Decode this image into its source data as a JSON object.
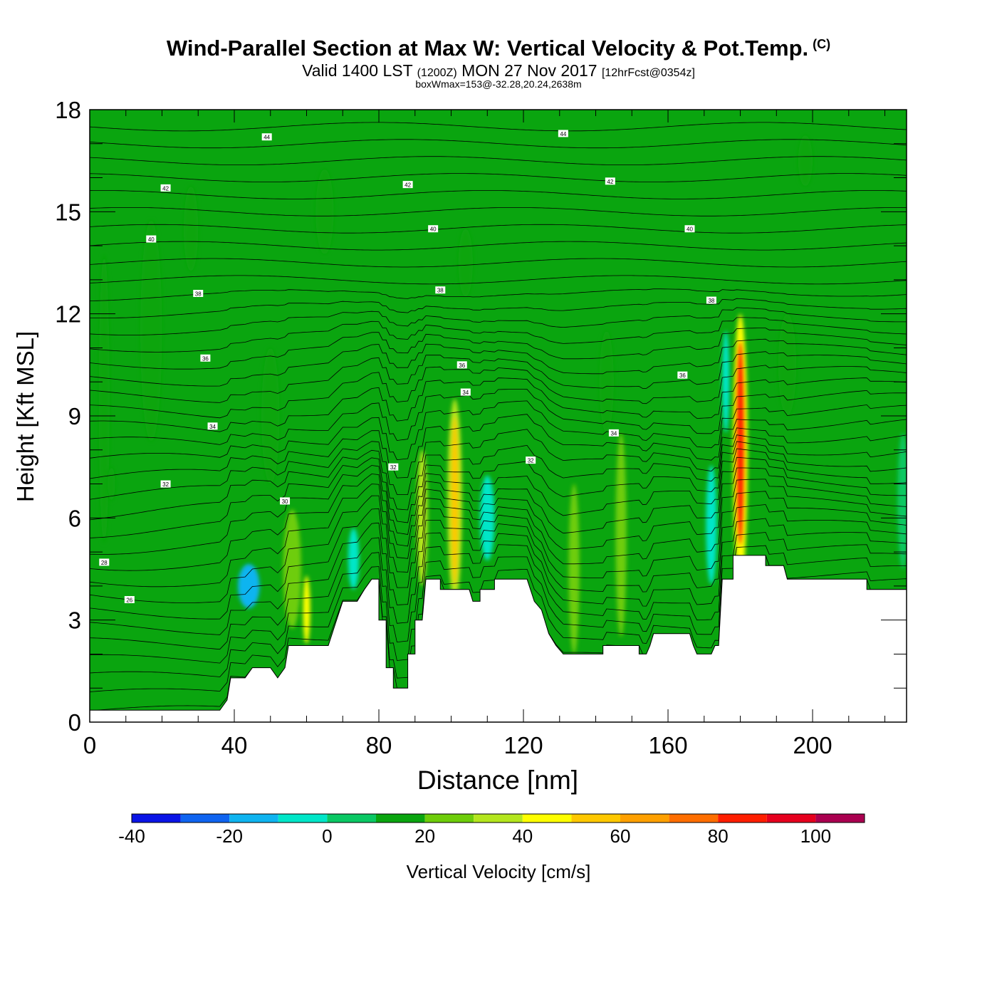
{
  "header": {
    "title": "Wind-Parallel Section at Max W: Vertical Velocity & Pot.Temp.",
    "copyright_mark": "(C)",
    "valid_prefix": "Valid 1400 LST",
    "valid_utc": "(1200Z)",
    "valid_date": "MON 27 Nov 2017",
    "forecast_info": "[12hrFcst@0354z]",
    "box_info": "boxWmax=153@-32.28,20.24,2638m"
  },
  "colorbar": {
    "label": "Vertical Velocity [cm/s]",
    "colors": [
      "#0a14e6",
      "#0f64f0",
      "#0fb4f0",
      "#00e6c8",
      "#0ac864",
      "#0aa50f",
      "#6ecd0a",
      "#b4e61e",
      "#ffff00",
      "#ffc800",
      "#ffa000",
      "#ff6e00",
      "#ff1e00",
      "#e6001e",
      "#aa0050"
    ],
    "ticks": [
      "-40",
      "-20",
      "0",
      "20",
      "40",
      "60",
      "80",
      "100"
    ]
  },
  "chart_data": {
    "type": "heatmap",
    "xlabel": "Distance [nm]",
    "ylabel": "Height [Kft MSL]",
    "xlim": [
      0,
      226
    ],
    "ylim": [
      0,
      18
    ],
    "x_ticks": [
      "0",
      "40",
      "80",
      "120",
      "160",
      "200"
    ],
    "y_ticks": [
      "0",
      "3",
      "6",
      "9",
      "12",
      "15",
      "18"
    ],
    "field": "Vertical Velocity [cm/s]",
    "features": [
      {
        "x": 4,
        "w": 3,
        "y": 9.5,
        "h": 8.5,
        "value": 5
      },
      {
        "x": 17,
        "w": 6,
        "y": 11.5,
        "h": 6.5,
        "value": 5
      },
      {
        "x": 28,
        "w": 4,
        "y": 14.5,
        "h": 2.5,
        "value": 5
      },
      {
        "x": 6,
        "w": 2,
        "y": 7,
        "h": 1,
        "value": 5
      },
      {
        "x": 50,
        "w": 5,
        "y": 9,
        "h": 4,
        "value": 5
      },
      {
        "x": 65,
        "w": 5,
        "y": 15,
        "h": 2.5,
        "value": 5
      },
      {
        "x": 104,
        "w": 4,
        "y": 13.5,
        "h": 2,
        "value": 5
      },
      {
        "x": 143,
        "w": 4,
        "y": 10,
        "h": 3,
        "value": 5
      },
      {
        "x": 193,
        "w": 5,
        "y": 10.5,
        "h": 3,
        "value": 5
      },
      {
        "x": 198,
        "w": 4,
        "y": 16.5,
        "h": 1.5,
        "value": 5
      },
      {
        "x": 44,
        "w": 6,
        "y": 4,
        "h": 1.3,
        "value": -25
      },
      {
        "x": 56,
        "w": 5,
        "y": 4.5,
        "h": 3.5,
        "value": 15
      },
      {
        "x": 60,
        "w": 2,
        "y": 3.3,
        "h": 2,
        "value": 35
      },
      {
        "x": 73,
        "w": 3,
        "y": 4.8,
        "h": 1.8,
        "value": -15
      },
      {
        "x": 92,
        "w": 3,
        "y": 6,
        "h": 4,
        "value": 25
      },
      {
        "x": 101,
        "w": 4,
        "y": 6.5,
        "h": 6,
        "value": 20
      },
      {
        "x": 101,
        "w": 2,
        "y": 6.5,
        "h": 5,
        "value": 40
      },
      {
        "x": 110,
        "w": 4,
        "y": 6,
        "h": 2.5,
        "value": -15
      },
      {
        "x": 134,
        "w": 3,
        "y": 4.5,
        "h": 5,
        "value": 15
      },
      {
        "x": 147,
        "w": 3,
        "y": 5.5,
        "h": 6,
        "value": 15
      },
      {
        "x": 172,
        "w": 3,
        "y": 5.8,
        "h": 3.5,
        "value": -20
      },
      {
        "x": 176,
        "w": 2,
        "y": 10,
        "h": 3,
        "value": -15
      },
      {
        "x": 180,
        "w": 4,
        "y": 8,
        "h": 8,
        "value": 30
      },
      {
        "x": 180,
        "w": 2,
        "y": 8.2,
        "h": 6,
        "value": 70
      },
      {
        "x": 225,
        "w": 3,
        "y": 6.5,
        "h": 4,
        "value": -10
      }
    ],
    "terrain": [
      [
        0,
        0.35
      ],
      [
        36,
        0.35
      ],
      [
        38,
        0.65
      ],
      [
        39,
        1.3
      ],
      [
        43,
        1.3
      ],
      [
        45,
        1.6
      ],
      [
        50,
        1.6
      ],
      [
        52,
        1.3
      ],
      [
        54,
        1.6
      ],
      [
        55,
        2.25
      ],
      [
        66,
        2.25
      ],
      [
        68,
        2.9
      ],
      [
        70,
        3.55
      ],
      [
        74,
        3.55
      ],
      [
        76,
        3.9
      ],
      [
        78,
        4.2
      ],
      [
        80,
        4.2
      ],
      [
        80,
        3.0
      ],
      [
        82,
        3.0
      ],
      [
        82,
        1.6
      ],
      [
        84,
        1.6
      ],
      [
        84,
        1.0
      ],
      [
        88,
        1.0
      ],
      [
        88,
        2.0
      ],
      [
        90,
        2.0
      ],
      [
        90,
        3.0
      ],
      [
        92,
        3.0
      ],
      [
        93,
        4.2
      ],
      [
        97,
        4.2
      ],
      [
        97,
        3.9
      ],
      [
        105,
        3.9
      ],
      [
        106,
        3.55
      ],
      [
        108,
        3.55
      ],
      [
        108,
        3.9
      ],
      [
        112,
        3.9
      ],
      [
        112,
        4.2
      ],
      [
        121,
        4.2
      ],
      [
        123,
        3.55
      ],
      [
        125,
        3.3
      ],
      [
        127,
        2.6
      ],
      [
        129,
        2.25
      ],
      [
        131,
        2.0
      ],
      [
        142,
        2.0
      ],
      [
        142,
        2.25
      ],
      [
        152,
        2.25
      ],
      [
        152,
        2.0
      ],
      [
        154,
        2.0
      ],
      [
        155,
        2.25
      ],
      [
        156,
        2.6
      ],
      [
        166,
        2.6
      ],
      [
        167,
        2.25
      ],
      [
        168,
        2.0
      ],
      [
        172,
        2.0
      ],
      [
        173,
        2.25
      ],
      [
        174,
        2.25
      ],
      [
        175,
        4.2
      ],
      [
        178,
        4.2
      ],
      [
        178,
        4.9
      ],
      [
        187,
        4.9
      ],
      [
        187,
        4.6
      ],
      [
        192,
        4.6
      ],
      [
        193,
        4.2
      ],
      [
        215,
        4.2
      ],
      [
        215,
        3.9
      ],
      [
        226,
        3.9
      ]
    ],
    "contour_labels": [
      {
        "text": "44",
        "x": 49,
        "y": 17.2
      },
      {
        "text": "44",
        "x": 131,
        "y": 17.3
      },
      {
        "text": "42",
        "x": 21,
        "y": 15.7
      },
      {
        "text": "42",
        "x": 88,
        "y": 15.8
      },
      {
        "text": "42",
        "x": 144,
        "y": 15.9
      },
      {
        "text": "40",
        "x": 17,
        "y": 14.2
      },
      {
        "text": "40",
        "x": 95,
        "y": 14.5
      },
      {
        "text": "40",
        "x": 166,
        "y": 14.5
      },
      {
        "text": "38",
        "x": 30,
        "y": 12.6
      },
      {
        "text": "38",
        "x": 97,
        "y": 12.7
      },
      {
        "text": "38",
        "x": 172,
        "y": 12.4
      },
      {
        "text": "36",
        "x": 32,
        "y": 10.7
      },
      {
        "text": "36",
        "x": 103,
        "y": 10.5
      },
      {
        "text": "36",
        "x": 164,
        "y": 10.2
      },
      {
        "text": "34",
        "x": 104,
        "y": 9.7
      },
      {
        "text": "34",
        "x": 34,
        "y": 8.7
      },
      {
        "text": "34",
        "x": 145,
        "y": 8.5
      },
      {
        "text": "32",
        "x": 84,
        "y": 7.5
      },
      {
        "text": "32",
        "x": 122,
        "y": 7.7
      },
      {
        "text": "32",
        "x": 21,
        "y": 7.0
      },
      {
        "text": "30",
        "x": 54,
        "y": 6.5
      },
      {
        "text": "28",
        "x": 4,
        "y": 4.7
      },
      {
        "text": "26",
        "x": 11,
        "y": 3.6
      }
    ]
  }
}
